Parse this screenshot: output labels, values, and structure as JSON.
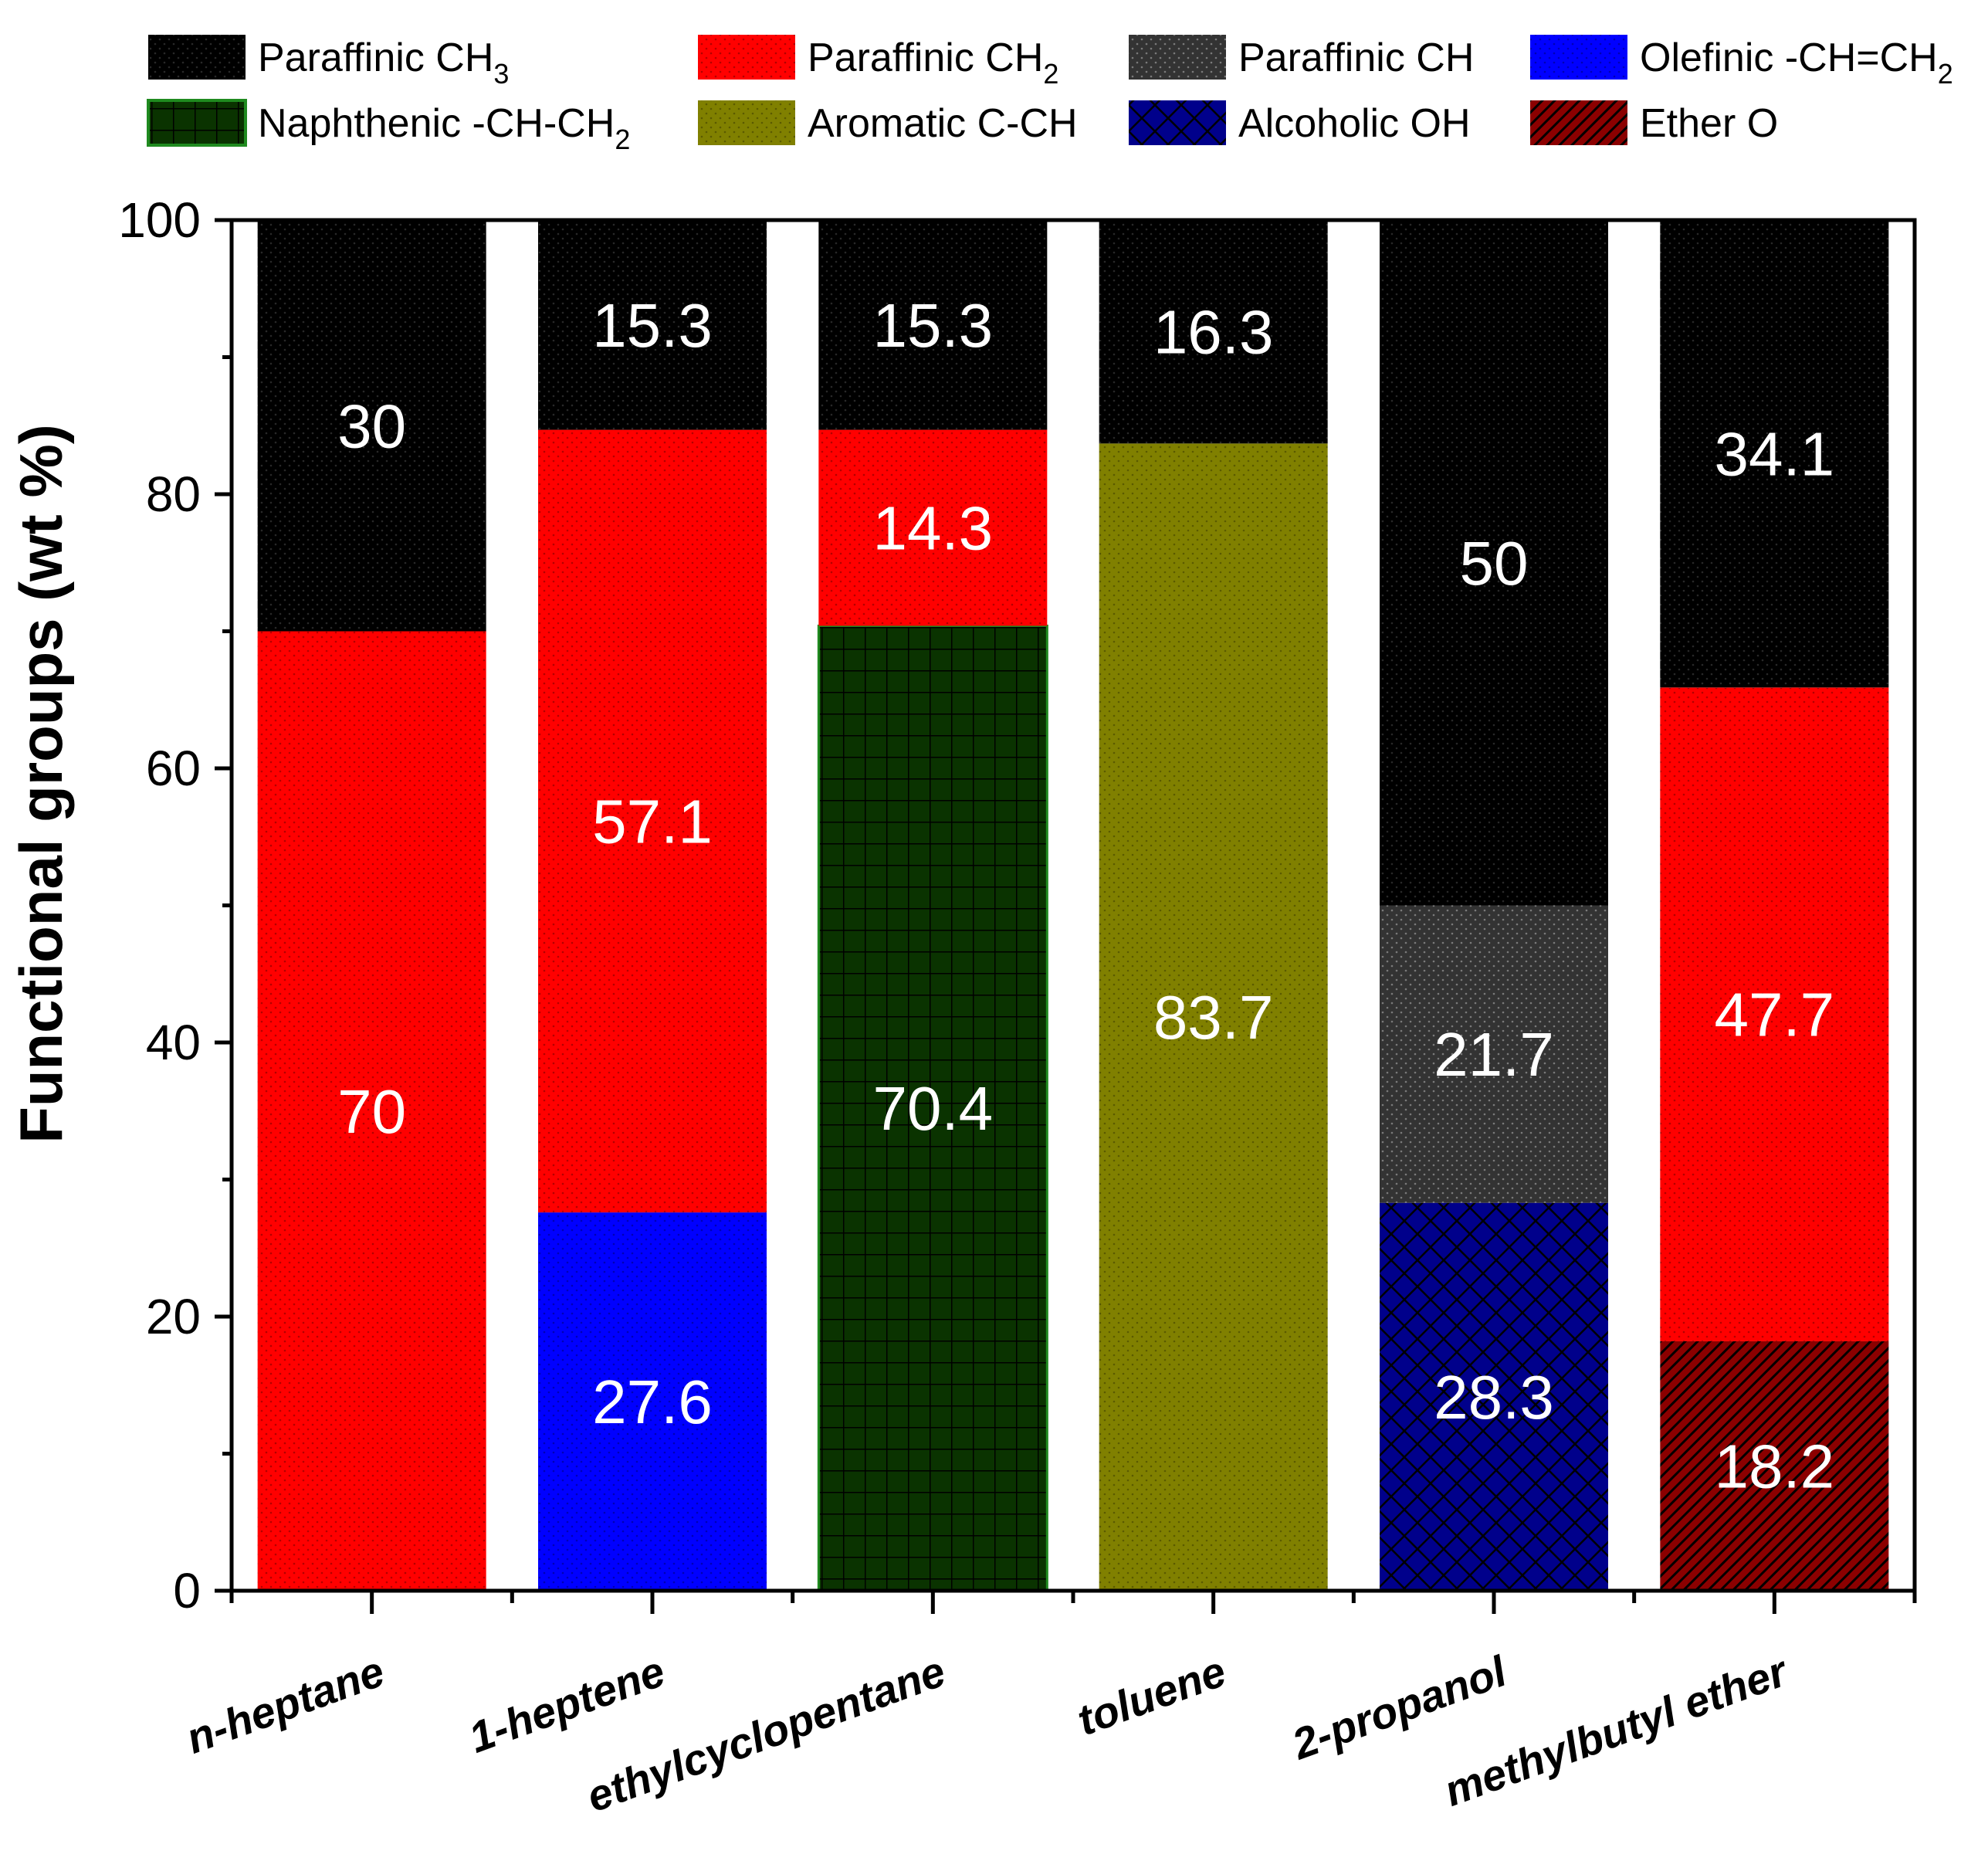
{
  "chart_data": {
    "type": "bar",
    "stacked": true,
    "title": "",
    "xlabel": "",
    "ylabel": "Functional groups (wt %)",
    "ylim": [
      0,
      100
    ],
    "yticks": [
      0,
      20,
      40,
      60,
      80,
      100
    ],
    "categories": [
      "n-heptane",
      "1-heptene",
      "ethylcyclopentane",
      "toluene",
      "2-propanol",
      "methylbutyl ether"
    ],
    "legend_position": "top",
    "series": [
      {
        "name": "Paraffinic CH3",
        "label_main": "Paraffinic CH",
        "label_sub": "3",
        "color": "#000000",
        "pattern": "dots-light",
        "values": [
          30,
          15.3,
          15.3,
          16.3,
          50,
          34.1
        ]
      },
      {
        "name": "Paraffinic CH2",
        "label_main": "Paraffinic CH",
        "label_sub": "2",
        "color": "#ff0000",
        "pattern": "dots-dark",
        "values": [
          70,
          57.1,
          14.3,
          0,
          0,
          47.7
        ]
      },
      {
        "name": "Paraffinic CH",
        "label_main": "Paraffinic CH",
        "label_sub": "",
        "color": "#333333",
        "pattern": "dots-light",
        "values": [
          0,
          0,
          0,
          0,
          21.7,
          0
        ]
      },
      {
        "name": "Olefinic -CH=CH2",
        "label_main": "Olefinic -CH=CH",
        "label_sub": "2",
        "color": "#0000ff",
        "pattern": "dots-dark",
        "values": [
          0,
          27.6,
          0,
          0,
          0,
          0
        ]
      },
      {
        "name": "Naphthenic -CH-CH2",
        "label_main": "Naphthenic -CH-CH",
        "label_sub": "2",
        "color": "#0a3300",
        "pattern": "grid",
        "values": [
          0,
          0,
          70.4,
          0,
          0,
          0
        ]
      },
      {
        "name": "Aromatic C-CH",
        "label_main": "Aromatic C-CH",
        "label_sub": "",
        "color": "#808000",
        "pattern": "dots-dark",
        "values": [
          0,
          0,
          0,
          83.7,
          0,
          0
        ]
      },
      {
        "name": "Alcoholic OH",
        "label_main": "Alcoholic OH",
        "label_sub": "",
        "color": "#00008b",
        "pattern": "crosshatch",
        "values": [
          0,
          0,
          0,
          0,
          28.3,
          0
        ]
      },
      {
        "name": "Ether O",
        "label_main": "Ether O",
        "label_sub": "",
        "color": "#8b0000",
        "pattern": "diagonal",
        "values": [
          0,
          0,
          0,
          0,
          0,
          18.2
        ]
      }
    ],
    "stack_order": [
      "Olefinic -CH=CH2",
      "Naphthenic -CH-CH2",
      "Aromatic C-CH",
      "Alcoholic OH",
      "Ether O",
      "Paraffinic CH",
      "Paraffinic CH2",
      "Paraffinic CH3"
    ],
    "data_labels": [
      [
        "30",
        "70"
      ],
      [
        "15.3",
        "57.1",
        "27.6"
      ],
      [
        "15.3",
        "14.3",
        "70.4"
      ],
      [
        "16.3",
        "83.7"
      ],
      [
        "50",
        "21.7",
        "28.3"
      ],
      [
        "34.1",
        "47.7",
        "18.2"
      ]
    ]
  }
}
